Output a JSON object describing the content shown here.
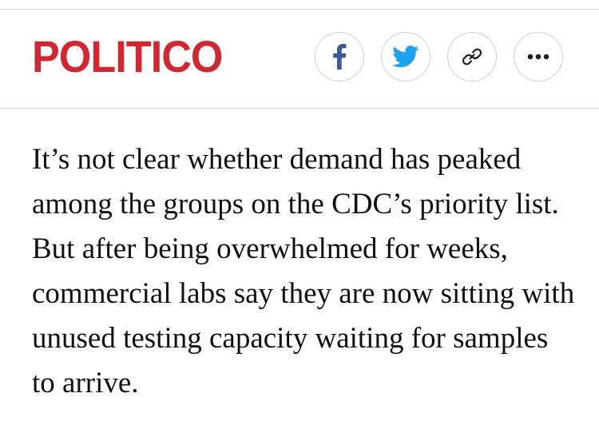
{
  "header": {
    "logo_text": "POLITICO",
    "brand_color": "#d22630",
    "share_buttons": [
      {
        "name": "facebook",
        "icon": "facebook-icon",
        "color": "#3b5998"
      },
      {
        "name": "twitter",
        "icon": "twitter-bird-icon",
        "color": "#1da1f2"
      },
      {
        "name": "copy-link",
        "icon": "link-icon",
        "color": "#222222"
      },
      {
        "name": "more",
        "icon": "more-dots-icon",
        "color": "#222222"
      }
    ]
  },
  "article": {
    "paragraph": "It’s not clear whether demand has peaked among the groups on the CDC’s priority list. But after being overwhelmed for weeks, commercial labs say they are now sitting with unused testing capacity waiting for samples to arrive."
  }
}
